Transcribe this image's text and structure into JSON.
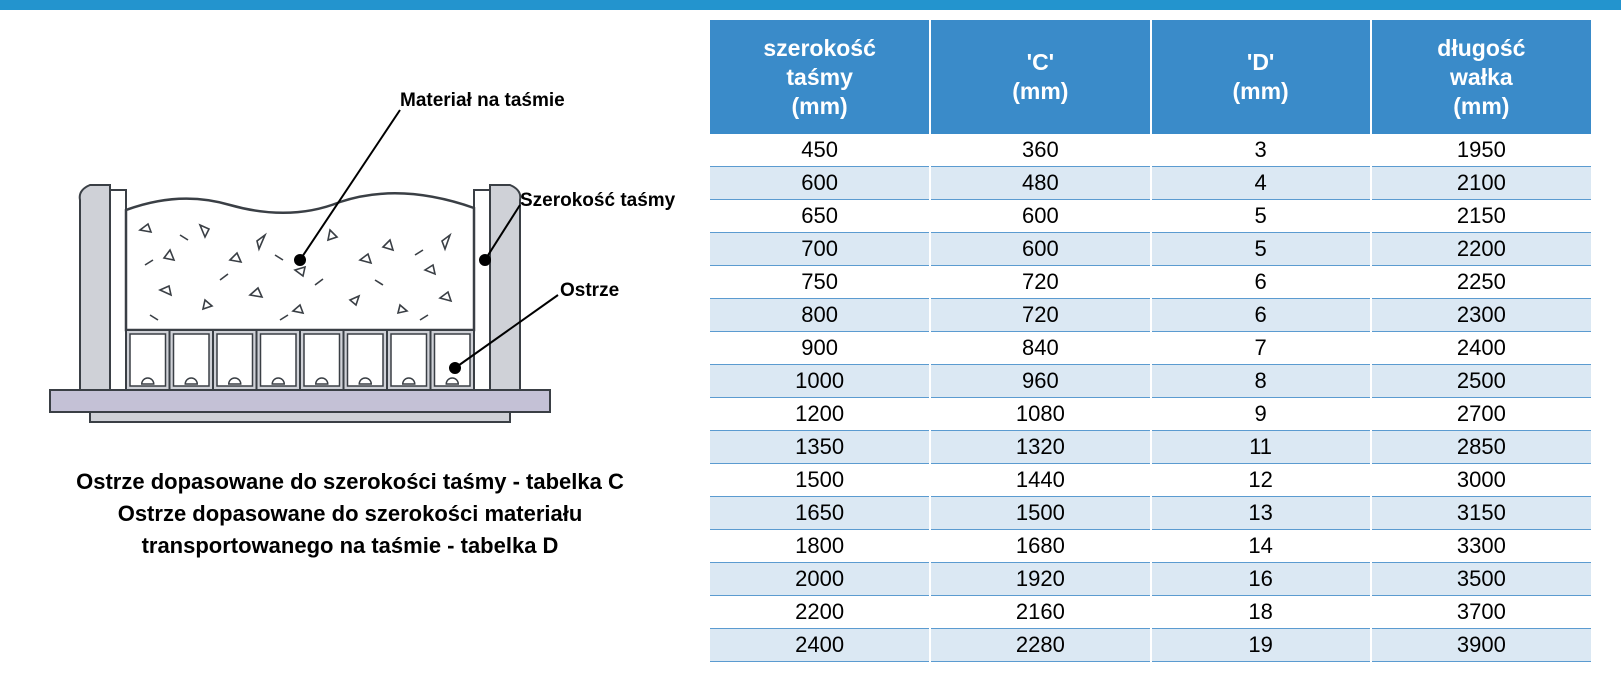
{
  "labels": {
    "material": "Materiał na taśmie",
    "belt_width": "Szerokość taśmy",
    "blade": "Ostrze"
  },
  "caption": {
    "line1": "Ostrze dopasowane do szerokości taśmy - tabelka C",
    "line2": "Ostrze dopasowane do szerokości materiału",
    "line3": "transportowanego na taśmie - tabelka D"
  },
  "columns": [
    "szerokość taśmy (mm)",
    "'C' (mm)",
    "'D' (mm)",
    "długość wałka (mm)"
  ],
  "column_lines": [
    [
      "szerokość",
      "taśmy",
      "(mm)"
    ],
    [
      "'C'",
      "(mm)"
    ],
    [
      "'D'",
      "(mm)"
    ],
    [
      "długość",
      "wałka",
      "(mm)"
    ]
  ],
  "rows": [
    [
      "450",
      "360",
      "3",
      "1950"
    ],
    [
      "600",
      "480",
      "4",
      "2100"
    ],
    [
      "650",
      "600",
      "5",
      "2150"
    ],
    [
      "700",
      "600",
      "5",
      "2200"
    ],
    [
      "750",
      "720",
      "6",
      "2250"
    ],
    [
      "800",
      "720",
      "6",
      "2300"
    ],
    [
      "900",
      "840",
      "7",
      "2400"
    ],
    [
      "1000",
      "960",
      "8",
      "2500"
    ],
    [
      "1200",
      "1080",
      "9",
      "2700"
    ],
    [
      "1350",
      "1320",
      "11",
      "2850"
    ],
    [
      "1500",
      "1440",
      "12",
      "3000"
    ],
    [
      "1650",
      "1500",
      "13",
      "3150"
    ],
    [
      "1800",
      "1680",
      "14",
      "3300"
    ],
    [
      "2000",
      "1920",
      "16",
      "3500"
    ],
    [
      "2200",
      "2160",
      "18",
      "3700"
    ],
    [
      "2400",
      "2280",
      "19",
      "3900"
    ]
  ],
  "styling": {
    "header_bg": "#3a8bc9",
    "header_fg": "#ffffff",
    "row_alt_bg": "#dbe8f3",
    "row_line": "#5b9bd0",
    "top_bar": "#2394ce",
    "font_family": "Arial",
    "header_fontsize_pt": 17,
    "body_fontsize_pt": 16,
    "caption_fontsize_pt": 16,
    "diagram_stroke": "#3a3f45",
    "diagram_fill": "#ffffff",
    "diagram_shade": "#cfd1d7",
    "platform_fill": "#c4c1d6"
  },
  "diagram": {
    "type": "infographic-cross-section",
    "callouts": [
      {
        "key": "material",
        "target": "material-heap"
      },
      {
        "key": "belt_width",
        "target": "side-wall"
      },
      {
        "key": "blade",
        "target": "blade-module"
      }
    ],
    "blade_module_count": 8
  }
}
